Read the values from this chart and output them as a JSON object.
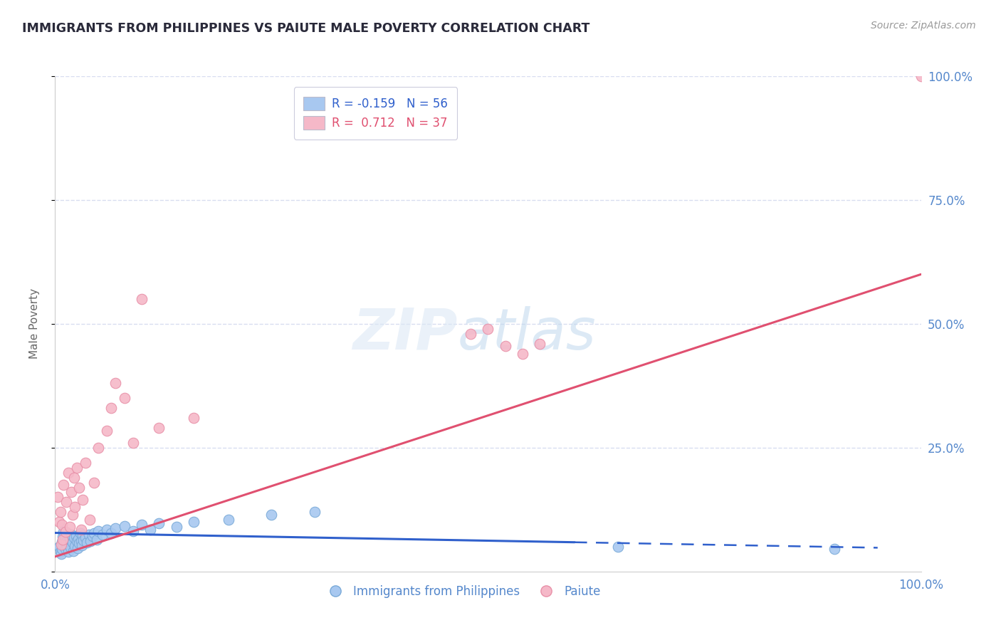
{
  "title": "IMMIGRANTS FROM PHILIPPINES VS PAIUTE MALE POVERTY CORRELATION CHART",
  "source": "Source: ZipAtlas.com",
  "ylabel": "Male Poverty",
  "xlim": [
    0.0,
    1.0
  ],
  "ylim": [
    0.0,
    1.0
  ],
  "legend_labels": [
    "Immigrants from Philippines",
    "Paiute"
  ],
  "blue_R": -0.159,
  "blue_N": 56,
  "pink_R": 0.712,
  "pink_N": 37,
  "blue_color": "#a8c8f0",
  "pink_color": "#f5b8c8",
  "blue_edge_color": "#7aaad8",
  "pink_edge_color": "#e890a8",
  "blue_line_color": "#3060cc",
  "pink_line_color": "#e05070",
  "title_color": "#2a2a3a",
  "axis_label_color": "#5588cc",
  "grid_color": "#d8ddf0",
  "background_color": "#ffffff",
  "blue_scatter_x": [
    0.005,
    0.006,
    0.007,
    0.008,
    0.008,
    0.009,
    0.01,
    0.01,
    0.011,
    0.012,
    0.013,
    0.014,
    0.015,
    0.016,
    0.017,
    0.018,
    0.018,
    0.019,
    0.02,
    0.021,
    0.022,
    0.023,
    0.024,
    0.025,
    0.026,
    0.027,
    0.028,
    0.029,
    0.03,
    0.031,
    0.032,
    0.033,
    0.035,
    0.037,
    0.039,
    0.041,
    0.043,
    0.045,
    0.048,
    0.05,
    0.055,
    0.06,
    0.065,
    0.07,
    0.08,
    0.09,
    0.1,
    0.11,
    0.12,
    0.14,
    0.16,
    0.2,
    0.25,
    0.3,
    0.65,
    0.9
  ],
  "blue_scatter_y": [
    0.05,
    0.04,
    0.035,
    0.06,
    0.045,
    0.07,
    0.055,
    0.08,
    0.065,
    0.045,
    0.06,
    0.05,
    0.04,
    0.07,
    0.055,
    0.065,
    0.048,
    0.075,
    0.058,
    0.042,
    0.068,
    0.052,
    0.072,
    0.062,
    0.047,
    0.066,
    0.057,
    0.078,
    0.062,
    0.053,
    0.073,
    0.063,
    0.068,
    0.058,
    0.075,
    0.062,
    0.072,
    0.078,
    0.065,
    0.082,
    0.075,
    0.085,
    0.078,
    0.088,
    0.092,
    0.082,
    0.095,
    0.085,
    0.098,
    0.09,
    0.1,
    0.105,
    0.115,
    0.12,
    0.05,
    0.045
  ],
  "pink_scatter_x": [
    0.003,
    0.005,
    0.006,
    0.007,
    0.008,
    0.009,
    0.01,
    0.012,
    0.013,
    0.015,
    0.017,
    0.019,
    0.02,
    0.022,
    0.023,
    0.025,
    0.028,
    0.03,
    0.032,
    0.035,
    0.04,
    0.045,
    0.05,
    0.06,
    0.065,
    0.07,
    0.08,
    0.09,
    0.1,
    0.12,
    0.16,
    0.48,
    0.5,
    0.52,
    0.54,
    0.56,
    1.0
  ],
  "pink_scatter_y": [
    0.15,
    0.1,
    0.12,
    0.055,
    0.095,
    0.065,
    0.175,
    0.08,
    0.14,
    0.2,
    0.09,
    0.16,
    0.115,
    0.19,
    0.13,
    0.21,
    0.17,
    0.085,
    0.145,
    0.22,
    0.105,
    0.18,
    0.25,
    0.285,
    0.33,
    0.38,
    0.35,
    0.26,
    0.55,
    0.29,
    0.31,
    0.48,
    0.49,
    0.455,
    0.44,
    0.46,
    1.0
  ],
  "blue_line_x_solid_end": 0.6,
  "blue_line_x_end": 0.95
}
